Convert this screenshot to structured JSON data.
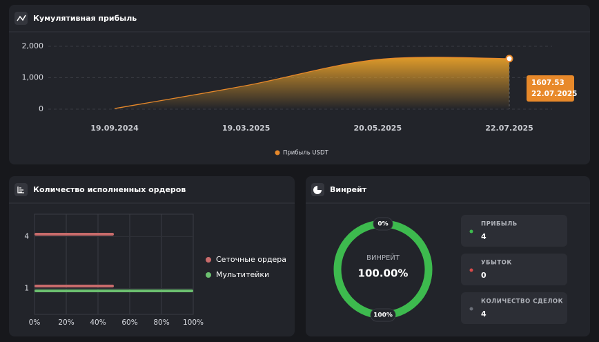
{
  "chart_data": [
    {
      "type": "area",
      "title": "Кумулятивная прибыль",
      "categories": [
        "19.09.2024",
        "19.03.2025",
        "20.05.2025",
        "22.07.2025"
      ],
      "series": [
        {
          "name": "Прибыль USDT",
          "color": "#e8892a",
          "values": [
            20,
            750,
            1580,
            1607.53
          ]
        }
      ],
      "ylim": [
        0,
        2000
      ],
      "yticks": [
        0,
        {
          "value": 1000,
          "label": "1,000"
        },
        {
          "value": 2000,
          "label": "2,000"
        }
      ],
      "grid": true
    },
    {
      "type": "hbar",
      "title": "Количество исполненных ордеров",
      "y": [
        4,
        1
      ],
      "series": [
        {
          "name": "Сеточные ордера",
          "color": "#c86b6b",
          "values": [
            50,
            50
          ]
        },
        {
          "name": "Мультитейки",
          "color": "#6cc070",
          "values": [
            null,
            100
          ]
        }
      ],
      "xlim": [
        0,
        100
      ],
      "xticks": [
        {
          "value": 0,
          "label": "0%"
        },
        {
          "value": 20,
          "label": "20%"
        },
        {
          "value": 40,
          "label": "40%"
        },
        {
          "value": 60,
          "label": "60%"
        },
        {
          "value": 80,
          "label": "80%"
        },
        {
          "value": 100,
          "label": "100%"
        }
      ],
      "ylim": [
        -0.5,
        5.3
      ],
      "yticks": [
        1,
        4
      ],
      "grid": true
    },
    {
      "type": "pie",
      "title": "Винрейт",
      "center_label": "ВИНРЕЙТ",
      "values": [
        100
      ],
      "value_labels": [
        "100.00%"
      ],
      "color": "#3dba4e",
      "scale_labels": [
        {
          "value": 0,
          "label": "0%"
        },
        {
          "value": 100,
          "label": "100%"
        }
      ]
    }
  ],
  "stats": [
    {
      "label": "ПРИБЫЛЬ",
      "value": 4,
      "color": "#3dba4e"
    },
    {
      "label": "УБЫТОК",
      "value": 0,
      "color": "#d94a4a"
    },
    {
      "label": "КОЛИЧЕСТВО СДЕЛОК",
      "value": 4,
      "color": "#6b6f78"
    }
  ]
}
